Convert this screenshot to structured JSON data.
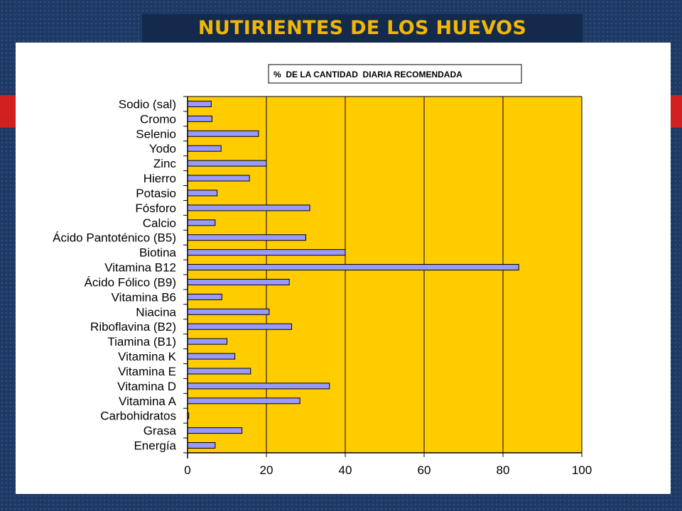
{
  "slide": {
    "title": "NUTIRIENTES  DE LOS HUEVOS"
  },
  "colors": {
    "background": "#1d3a66",
    "title_text": "#f2b705",
    "accent_red": "#d21f1f",
    "plot_area": "#ffcc00",
    "bar_fill": "#9999ff",
    "bar_stroke": "#000000"
  },
  "chart_data": {
    "type": "bar",
    "orientation": "horizontal",
    "title": "%  DE LA CANTIDAD  DIARIA RECOMENDADA",
    "xlabel": "",
    "ylabel": "",
    "xlim": [
      0,
      100
    ],
    "xticks": [
      0,
      20,
      40,
      60,
      80,
      100
    ],
    "grid": "vertical",
    "categories": [
      "Sodio (sal)",
      "Cromo",
      "Selenio",
      "Yodo",
      "Zinc",
      "Hierro",
      "Potasio",
      "Fósforo",
      "Calcio",
      "Ácido Pantoténico (B5)",
      "Biotina",
      "Vitamina B12",
      "Ácido Fólico (B9)",
      "Vitamina B6",
      "Niacina",
      "Riboflavina (B2)",
      "Tiamina (B1)",
      "Vitamina K",
      "Vitamina E",
      "Vitamina D",
      "Vitamina A",
      "Carbohidratos",
      "Grasa",
      "Energía"
    ],
    "values": [
      6,
      6.2,
      18,
      8.5,
      20,
      15.7,
      7.5,
      31,
      7,
      30,
      40,
      84,
      25.8,
      8.7,
      20.7,
      26.4,
      10,
      12,
      16,
      36,
      28.5,
      0.3,
      13.8,
      7
    ]
  }
}
